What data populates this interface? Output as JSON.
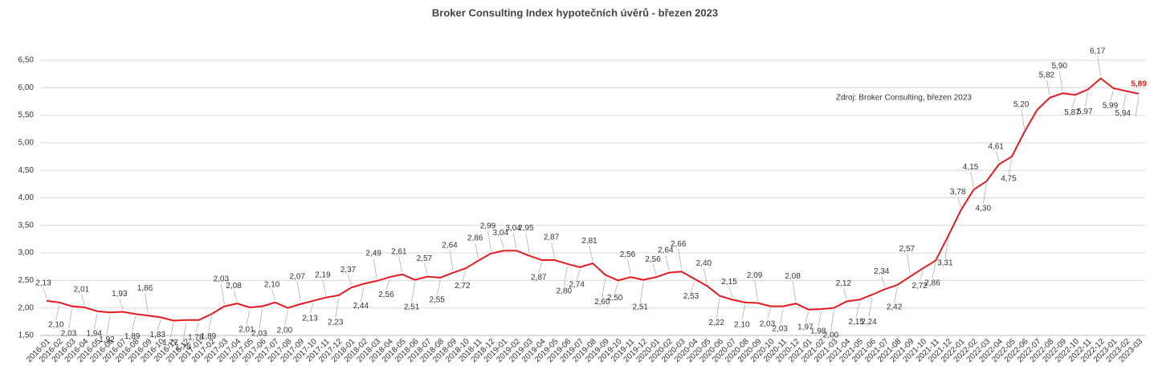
{
  "chart_data": {
    "type": "line",
    "title": "Broker Consulting Index hypotečních úvěrů - březen 2023",
    "annotation": "Zdroj: Broker Consulting, březen 2023",
    "categories": [
      "2016-01",
      "2016-02",
      "2016-03",
      "2016-04",
      "2016-05",
      "2016-06",
      "2016-07",
      "2016-08",
      "2016-09",
      "2016-10",
      "2016-11",
      "2016-12",
      "2017-01",
      "2017-02",
      "2017-03",
      "2017-04",
      "2017-05",
      "2017-06",
      "2017-07",
      "2017-08",
      "2017-09",
      "2017-10",
      "2017-11",
      "2017-12",
      "2018-01",
      "2018-02",
      "2018-03",
      "2018-04",
      "2018-05",
      "2018-06",
      "2018-07",
      "2018-08",
      "2018-09",
      "2018-10",
      "2018-11",
      "2018-12",
      "2019-01",
      "2019-02",
      "2019-03",
      "2019-04",
      "2019-05",
      "2019-06",
      "2019-07",
      "2019-08",
      "2019-09",
      "2019-10",
      "2019-11",
      "2019-12",
      "2020-01",
      "2020-02",
      "2020-03",
      "2020-04",
      "2020-05",
      "2020-06",
      "2020-07",
      "2020-08",
      "2020-09",
      "2020-10",
      "2020-11",
      "2020-12",
      "2021-01",
      "2021-02",
      "2021-03",
      "2021-04",
      "2021-05",
      "2021-06",
      "2021-07",
      "2021-08",
      "2021-09",
      "2021-10",
      "2021-11",
      "2021-12",
      "2022-01",
      "2022-02",
      "2022-03",
      "2022-04",
      "2022-05",
      "2022-06",
      "2022-07",
      "2022-08",
      "2022-09",
      "2022-10",
      "2022-11",
      "2022-12",
      "2023-01",
      "2023-02",
      "2023-03"
    ],
    "series": [
      {
        "name": "Index",
        "color": "#e41a1c",
        "values": [
          2.13,
          2.1,
          2.03,
          2.01,
          1.94,
          1.92,
          1.93,
          1.89,
          1.86,
          1.83,
          1.77,
          1.78,
          1.78,
          1.89,
          2.03,
          2.08,
          2.01,
          2.03,
          2.1,
          2.0,
          2.07,
          2.13,
          2.19,
          2.23,
          2.37,
          2.44,
          2.49,
          2.56,
          2.61,
          2.51,
          2.57,
          2.55,
          2.64,
          2.72,
          2.86,
          2.99,
          3.04,
          3.04,
          2.95,
          2.87,
          2.87,
          2.8,
          2.74,
          2.81,
          2.6,
          2.5,
          2.56,
          2.51,
          2.56,
          2.64,
          2.66,
          2.53,
          2.4,
          2.22,
          2.15,
          2.1,
          2.09,
          2.03,
          2.03,
          2.08,
          1.97,
          1.98,
          2.0,
          2.12,
          2.15,
          2.24,
          2.34,
          2.42,
          2.57,
          2.72,
          2.86,
          3.31,
          3.78,
          4.15,
          4.3,
          4.61,
          4.75,
          5.2,
          5.6,
          5.82,
          5.9,
          5.87,
          5.97,
          6.17,
          5.99,
          5.94,
          5.89
        ],
        "value_labels": [
          "2,13",
          "2,10",
          "2,03",
          "2,01",
          "1,94",
          "1,92",
          "1,93",
          "1,89",
          "1,86",
          "1,83",
          "1,77",
          "1,78",
          "1,78",
          "1,89",
          "2,03",
          "2,08",
          "2,01",
          "2,03",
          "2,10",
          "2,00",
          "2,07",
          "2,13",
          "2,19",
          "2,23",
          "2,37",
          "2,44",
          "2,49",
          "2,56",
          "2,61",
          "2,51",
          "2,57",
          "2,55",
          "2,64",
          "2,72",
          "2,86",
          "2,99",
          "3,04",
          "3,04",
          "2,95",
          "2,87",
          "2,87",
          "2,80",
          "2,74",
          "2,81",
          "2,60",
          "2,50",
          "2,56",
          "2,51",
          "2,56",
          "2,64",
          "2,66",
          "2,53",
          "2,40",
          "2,22",
          "2,15",
          "2,10",
          "2,09",
          "2,03",
          "2,03",
          "2,08",
          "1,97",
          "1,98",
          "2,00",
          "2,12",
          "2,15",
          "2,24",
          "2,34",
          "2,42",
          "2,57",
          "2,72",
          "2,86",
          "3,31",
          "3,78",
          "4,15",
          "4,30",
          "4,61",
          "4,75",
          "5,20",
          null,
          "5,82",
          "5,90",
          "5,87",
          "5,97",
          "6,17",
          "5,99",
          "5,94",
          "5,89"
        ]
      }
    ],
    "ylim": [
      1.5,
      6.5
    ],
    "yticks": [
      {
        "value": 1.5,
        "label": "1,50"
      },
      {
        "value": 2,
        "label": "2,00"
      },
      {
        "value": 2.5,
        "label": "2,50"
      },
      {
        "value": 3,
        "label": "3,00"
      },
      {
        "value": 3.5,
        "label": "3,50"
      },
      {
        "value": 4,
        "label": "4,00"
      },
      {
        "value": 4.5,
        "label": "4,50"
      },
      {
        "value": 5,
        "label": "5,00"
      },
      {
        "value": 5.5,
        "label": "5,50"
      },
      {
        "value": 6,
        "label": "6,00"
      },
      {
        "value": 6.5,
        "label": "6,50"
      }
    ],
    "grid": true
  }
}
